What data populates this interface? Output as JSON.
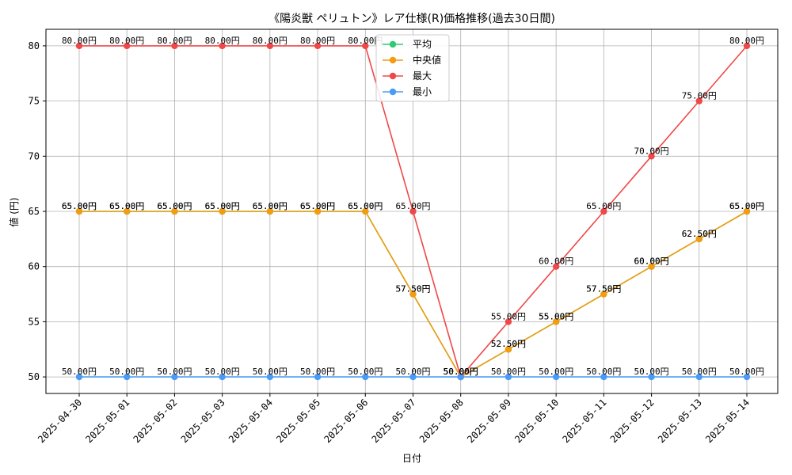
{
  "chart_data": {
    "type": "line",
    "title": "《陽炎獣 ペリュトン》レア仕様(R)価格推移(過去30日間)",
    "xlabel": "日付",
    "ylabel": "値 (円)",
    "ylim": [
      48.5,
      81.5
    ],
    "yticks": [
      50,
      55,
      60,
      65,
      70,
      75,
      80
    ],
    "grid": true,
    "legend_position": "top-center",
    "value_suffix": "円",
    "categories": [
      "2025-04-30",
      "2025-05-01",
      "2025-05-02",
      "2025-05-03",
      "2025-05-04",
      "2025-05-05",
      "2025-05-06",
      "2025-05-07",
      "2025-05-08",
      "2025-05-09",
      "2025-05-10",
      "2025-05-11",
      "2025-05-12",
      "2025-05-13",
      "2025-05-14"
    ],
    "series": [
      {
        "name": "平均",
        "color": "#2ecc71",
        "values": [
          65,
          65,
          65,
          65,
          65,
          65,
          65,
          57.5,
          50,
          52.5,
          55,
          57.5,
          60,
          62.5,
          65
        ]
      },
      {
        "name": "中央値",
        "color": "#f39c12",
        "values": [
          65,
          65,
          65,
          65,
          65,
          65,
          65,
          57.5,
          50,
          52.5,
          55,
          57.5,
          60,
          62.5,
          65
        ]
      },
      {
        "name": "最大",
        "color": "#f04848",
        "values": [
          80,
          80,
          80,
          80,
          80,
          80,
          80,
          65,
          50,
          55,
          60,
          65,
          70,
          75,
          80
        ]
      },
      {
        "name": "最小",
        "color": "#4a9bf5",
        "values": [
          50,
          50,
          50,
          50,
          50,
          50,
          50,
          50,
          50,
          50,
          50,
          50,
          50,
          50,
          50
        ]
      }
    ]
  }
}
